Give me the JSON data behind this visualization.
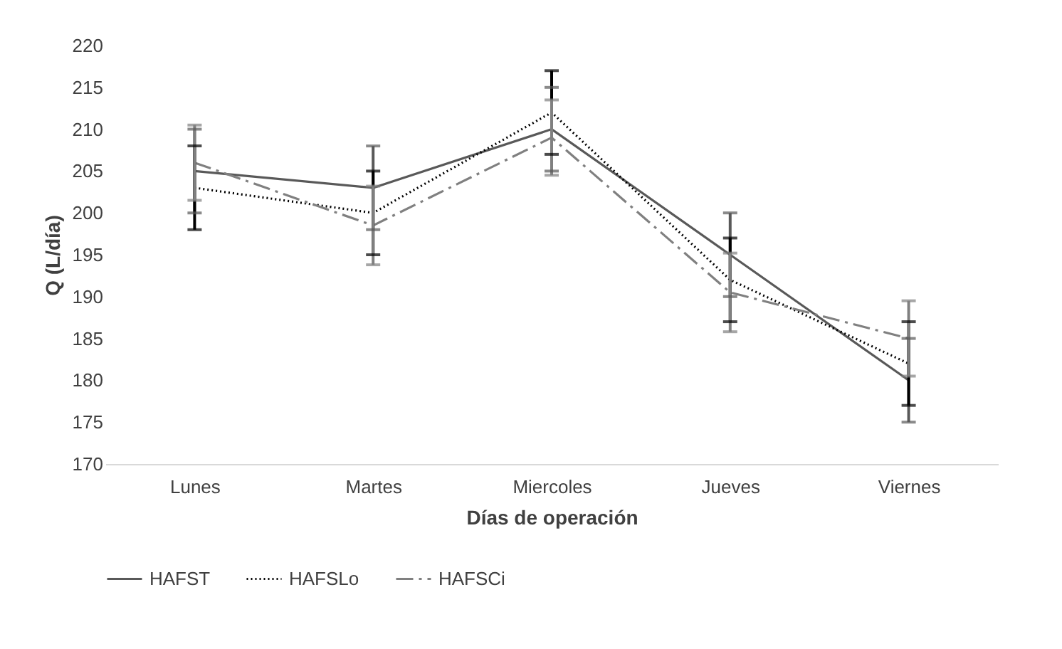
{
  "chart_data": {
    "type": "line",
    "xlabel": "Días de operación",
    "ylabel": "Q (L/día)",
    "categories": [
      "Lunes",
      "Martes",
      "Miercoles",
      "Jueves",
      "Viernes"
    ],
    "ylim": [
      170,
      220
    ],
    "yticks": [
      170,
      175,
      180,
      185,
      190,
      195,
      200,
      205,
      210,
      215,
      220
    ],
    "grid": false,
    "legend": "bottom",
    "marker": "none",
    "series": [
      {
        "name": "HAFST",
        "color": "#595959",
        "line_style": "solid",
        "values": [
          205,
          203,
          210,
          195,
          180
        ],
        "errors": [
          5,
          5,
          5,
          5,
          5
        ]
      },
      {
        "name": "HAFSLo",
        "color": "#000000",
        "line_style": "dotted",
        "values": [
          203,
          200,
          212,
          192,
          182
        ],
        "errors": [
          5,
          5,
          5,
          5,
          5
        ]
      },
      {
        "name": "HAFSCi",
        "color": "#808080",
        "line_style": "dashed",
        "values": [
          206,
          198.5,
          209,
          190.5,
          185
        ],
        "errors": [
          4.5,
          4.7,
          4.5,
          4.7,
          4.5
        ]
      }
    ]
  }
}
